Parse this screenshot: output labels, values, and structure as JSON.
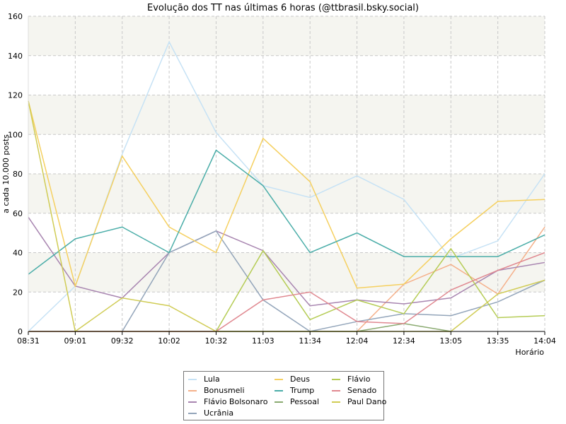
{
  "chart_data": {
    "type": "line",
    "title": "Evolução dos TT nas últimas 6 horas (@ttbrasil.bsky.social)",
    "xlabel": "Horário",
    "ylabel": "a cada 10.000 posts",
    "ylim": [
      0,
      160
    ],
    "yticks": [
      0,
      20,
      40,
      60,
      80,
      100,
      120,
      140,
      160
    ],
    "grid": true,
    "legend_placement": "bottom",
    "band_color": "#f5f5f0",
    "x": [
      "08:31",
      "09:01",
      "09:32",
      "10:02",
      "10:32",
      "11:03",
      "11:34",
      "12:04",
      "12:34",
      "13:05",
      "13:35",
      "14:04"
    ],
    "series": [
      {
        "name": "Lula",
        "color": "#c6e2f5",
        "values": [
          0,
          23,
          90,
          147,
          101,
          74,
          68,
          79,
          67,
          37,
          46,
          80
        ]
      },
      {
        "name": "Bonusmeli",
        "color": "#f5b08a",
        "values": [
          0,
          0,
          0,
          0,
          0,
          0,
          0,
          0,
          24,
          34,
          19,
          53
        ]
      },
      {
        "name": "Flávio Bolsonaro",
        "color": "#a885b0",
        "values": [
          58,
          23,
          17,
          40,
          51,
          41,
          13,
          16,
          14,
          17,
          31,
          35
        ]
      },
      {
        "name": "Ucrânia",
        "color": "#93a5ba",
        "values": [
          0,
          0,
          0,
          40,
          51,
          16,
          0,
          5,
          9,
          8,
          15,
          26
        ]
      },
      {
        "name": "Deus",
        "color": "#f5d060",
        "values": [
          117,
          23,
          89,
          53,
          40,
          98,
          76,
          22,
          24,
          47,
          66,
          67
        ]
      },
      {
        "name": "Trump",
        "color": "#4aada8",
        "values": [
          29,
          47,
          53,
          40,
          92,
          74,
          40,
          50,
          38,
          38,
          38,
          49
        ]
      },
      {
        "name": "Pessoal",
        "color": "#8aaa70",
        "values": [
          0,
          0,
          0,
          0,
          0,
          0,
          0,
          0,
          4,
          0,
          null,
          null
        ]
      },
      {
        "name": "Flávio",
        "color": "#b5cc55",
        "values": [
          0,
          0,
          0,
          0,
          0,
          41,
          6,
          16,
          9,
          42,
          7,
          8
        ]
      },
      {
        "name": "Senado",
        "color": "#e08890",
        "values": [
          0,
          0,
          0,
          0,
          0,
          16,
          20,
          5,
          4,
          21,
          31,
          40
        ]
      },
      {
        "name": "Paul Dano",
        "color": "#d0cc55",
        "values": [
          117,
          0,
          17,
          13,
          0,
          0,
          0,
          0,
          0,
          0,
          19,
          26
        ]
      }
    ]
  }
}
